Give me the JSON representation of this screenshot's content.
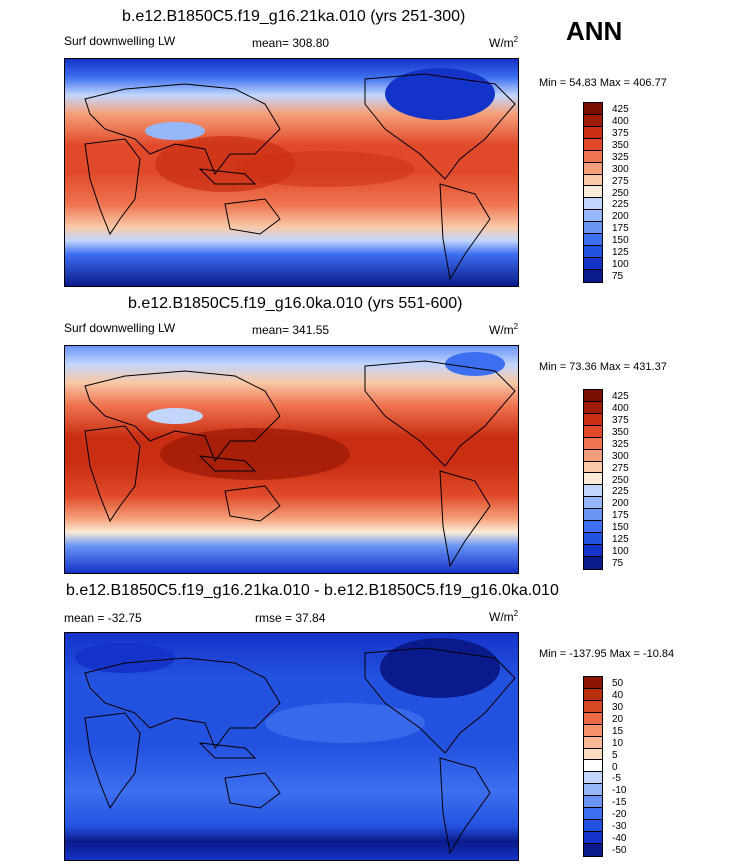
{
  "season": "ANN",
  "palette": {
    "abs": [
      "#0a1a8a",
      "#1433c8",
      "#2452e0",
      "#3d6ff0",
      "#6a95f5",
      "#96b7fa",
      "#c2d6fd",
      "#fcecd8",
      "#f9c9a8",
      "#f5a07a",
      "#ef7450",
      "#e04a2a",
      "#c92e12",
      "#a01c08",
      "#7a0e02"
    ],
    "diff": [
      "#0a1a8a",
      "#1433c8",
      "#2452e0",
      "#3d6ff0",
      "#6a95f5",
      "#96b7fa",
      "#c2d6fd",
      "#ffffff",
      "#fcdcc2",
      "#f9b896",
      "#f4906a",
      "#ec6a44",
      "#d84a26",
      "#b8300e",
      "#8a1402"
    ]
  },
  "chart_data": [
    {
      "type": "heatmap",
      "title": "b.e12.B1850C5.f19_g16.21ka.010 (yrs 251-300)",
      "variable": "Surf downwelling LW",
      "mean_label": "mean= 308.80",
      "units": "W/m",
      "units_exp": "2",
      "min_max": "Min =  54.83 Max = 406.77",
      "colorbar_ticks": [
        "425",
        "400",
        "375",
        "350",
        "325",
        "300",
        "275",
        "250",
        "225",
        "200",
        "175",
        "150",
        "125",
        "100",
        "75"
      ],
      "stats": {
        "mean": 308.8,
        "min": 54.83,
        "max": 406.77
      }
    },
    {
      "type": "heatmap",
      "title": "b.e12.B1850C5.f19_g16.0ka.010 (yrs 551-600)",
      "variable": "Surf downwelling LW",
      "mean_label": "mean= 341.55",
      "units": "W/m",
      "units_exp": "2",
      "min_max": "Min =  73.36 Max = 431.37",
      "colorbar_ticks": [
        "425",
        "400",
        "375",
        "350",
        "325",
        "300",
        "275",
        "250",
        "225",
        "200",
        "175",
        "150",
        "125",
        "100",
        "75"
      ],
      "stats": {
        "mean": 341.55,
        "min": 73.36,
        "max": 431.37
      }
    },
    {
      "type": "heatmap",
      "title": "b.e12.B1850C5.f19_g16.21ka.010 - b.e12.B1850C5.f19_g16.0ka.010",
      "mean_label": "mean = -32.75",
      "rmse_label": "rmse =  37.84",
      "units": "W/m",
      "units_exp": "2",
      "min_max": "Min = -137.95 Max = -10.84",
      "colorbar_ticks": [
        "50",
        "40",
        "30",
        "20",
        "15",
        "10",
        "5",
        "0",
        "-5",
        "-10",
        "-15",
        "-20",
        "-30",
        "-40",
        "-50"
      ],
      "stats": {
        "mean": -32.75,
        "rmse": 37.84,
        "min": -137.95,
        "max": -10.84
      }
    }
  ]
}
